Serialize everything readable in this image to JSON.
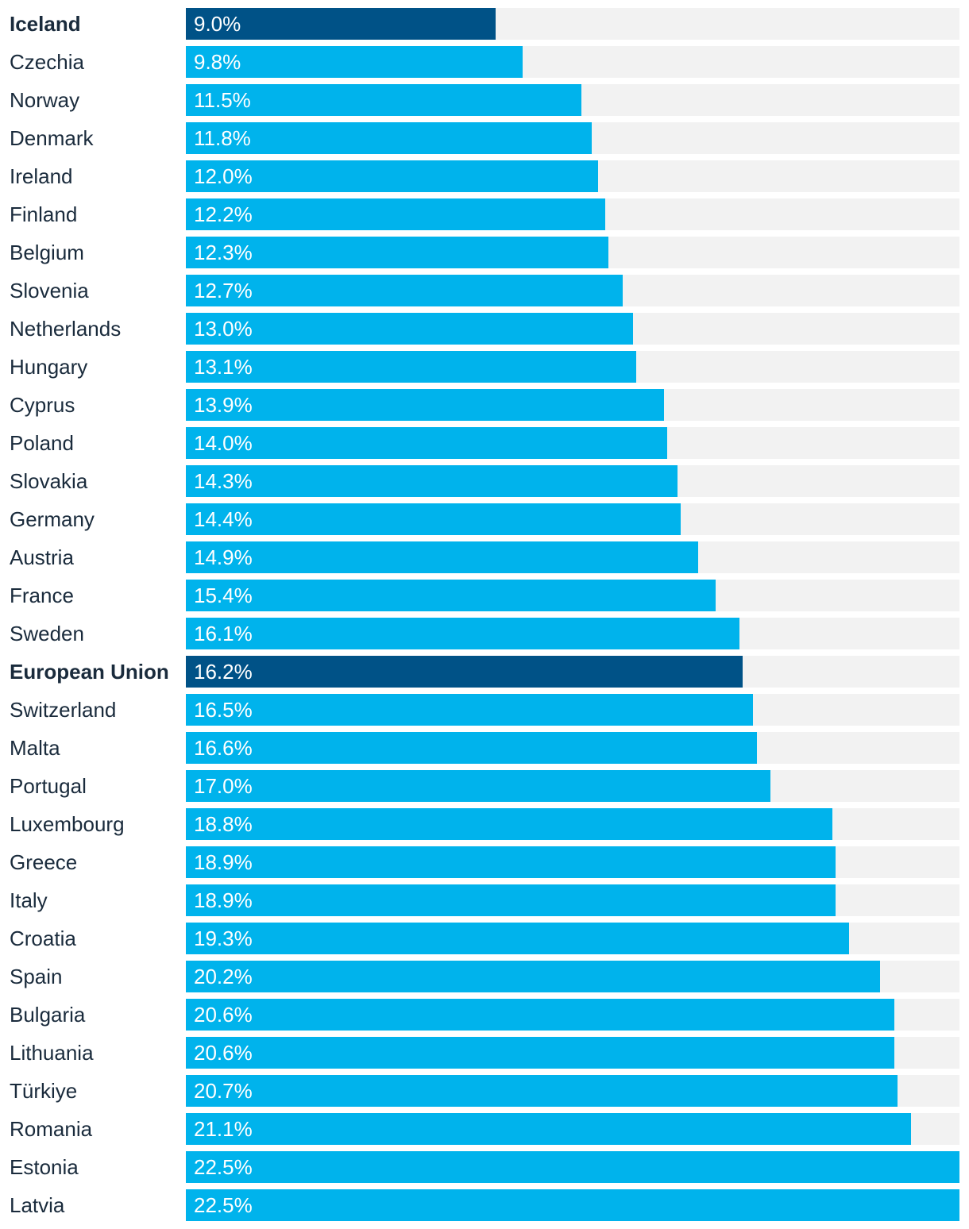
{
  "colors": {
    "bar": "#00b3ec",
    "highlight_bar": "#005287",
    "track": "#f2f2f2",
    "label_text": "#1a2b3c",
    "value_text": "#ffffff"
  },
  "chart_data": {
    "type": "bar",
    "orientation": "horizontal",
    "xlim": [
      0,
      22.5
    ],
    "grid": false,
    "categories": [
      "Iceland",
      "Czechia",
      "Norway",
      "Denmark",
      "Ireland",
      "Finland",
      "Belgium",
      "Slovenia",
      "Netherlands",
      "Hungary",
      "Cyprus",
      "Poland",
      "Slovakia",
      "Germany",
      "Austria",
      "France",
      "Sweden",
      "European Union",
      "Switzerland",
      "Malta",
      "Portugal",
      "Luxembourg",
      "Greece",
      "Italy",
      "Croatia",
      "Spain",
      "Bulgaria",
      "Lithuania",
      "Türkiye",
      "Romania",
      "Estonia",
      "Latvia"
    ],
    "values": [
      9.0,
      9.8,
      11.5,
      11.8,
      12.0,
      12.2,
      12.3,
      12.7,
      13.0,
      13.1,
      13.9,
      14.0,
      14.3,
      14.4,
      14.9,
      15.4,
      16.1,
      16.2,
      16.5,
      16.6,
      17.0,
      18.8,
      18.9,
      18.9,
      19.3,
      20.2,
      20.6,
      20.6,
      20.7,
      21.1,
      22.5,
      22.5
    ],
    "value_labels": [
      "9.0%",
      "9.8%",
      "11.5%",
      "11.8%",
      "12.0%",
      "12.2%",
      "12.3%",
      "12.7%",
      "13.0%",
      "13.1%",
      "13.9%",
      "14.0%",
      "14.3%",
      "14.4%",
      "14.9%",
      "15.4%",
      "16.1%",
      "16.2%",
      "16.5%",
      "16.6%",
      "17.0%",
      "18.8%",
      "18.9%",
      "18.9%",
      "19.3%",
      "20.2%",
      "20.6%",
      "20.6%",
      "20.7%",
      "21.1%",
      "22.5%",
      "22.5%"
    ],
    "highlighted": [
      "Iceland",
      "European Union"
    ]
  }
}
